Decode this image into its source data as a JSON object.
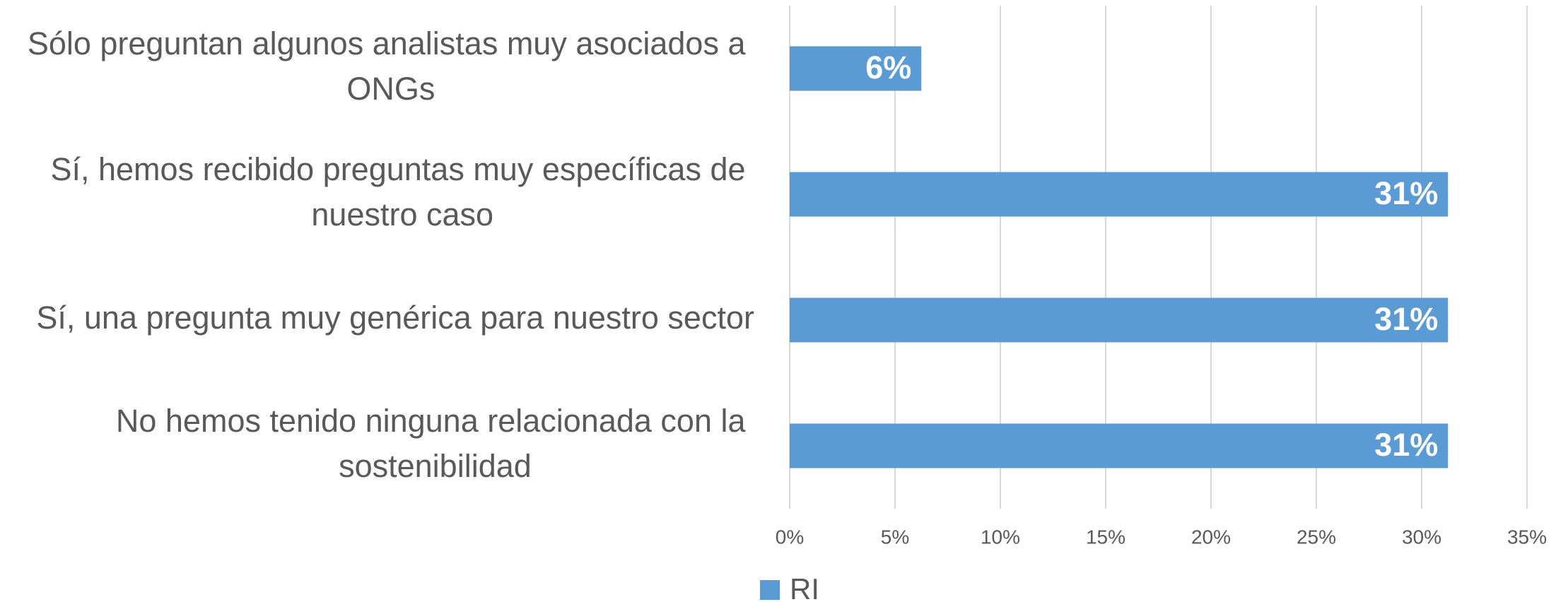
{
  "chart_data": {
    "type": "barh",
    "categories": [
      "Sólo preguntan algunos analistas muy asociados a ONGs",
      "Sí, hemos recibido preguntas muy específicas de nuestro caso",
      "Sí, una pregunta muy genérica para nuestro sector",
      "No hemos tenido ninguna relacionada con la sostenibilidad"
    ],
    "series": [
      {
        "name": "RI",
        "color": "#5b9bd5",
        "values": [
          6.25,
          31.25,
          31.25,
          31.25
        ],
        "value_labels": [
          "6%",
          "31%",
          "31%",
          "31%"
        ]
      }
    ],
    "xlim": [
      0,
      35
    ],
    "xticks": [
      {
        "value": 0,
        "label": "0%"
      },
      {
        "value": 5,
        "label": "5%"
      },
      {
        "value": 10,
        "label": "10%"
      },
      {
        "value": 15,
        "label": "15%"
      },
      {
        "value": 20,
        "label": "20%"
      },
      {
        "value": 25,
        "label": "25%"
      },
      {
        "value": 30,
        "label": "30%"
      },
      {
        "value": 35,
        "label": "35%"
      }
    ],
    "grid": true,
    "legend": "bottom"
  }
}
